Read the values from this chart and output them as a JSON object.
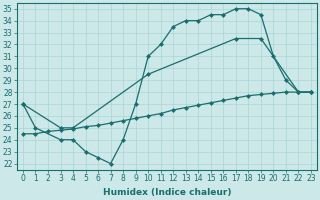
{
  "line1_x": [
    0,
    1,
    3,
    4,
    5,
    6,
    7,
    8,
    9,
    10,
    11,
    12,
    13,
    14,
    15,
    16,
    17,
    18,
    19,
    20,
    21,
    22,
    23
  ],
  "line1_y": [
    27,
    25,
    24,
    24,
    23,
    22.5,
    22,
    24,
    27,
    31,
    32,
    33.5,
    34,
    34,
    34.5,
    34.5,
    35,
    35,
    34.5,
    31,
    29,
    28,
    28
  ],
  "line2_x": [
    0,
    3,
    4,
    10,
    17,
    19,
    22,
    23
  ],
  "line2_y": [
    27,
    25,
    25,
    29.5,
    32.5,
    32.5,
    28,
    28
  ],
  "line3_x": [
    0,
    1,
    2,
    3,
    4,
    5,
    6,
    7,
    8,
    9,
    10,
    11,
    12,
    13,
    14,
    15,
    16,
    17,
    18,
    19,
    20,
    21,
    22,
    23
  ],
  "line3_y": [
    24.5,
    24.5,
    24.7,
    24.8,
    24.9,
    25.1,
    25.2,
    25.4,
    25.6,
    25.8,
    26.0,
    26.2,
    26.5,
    26.7,
    26.9,
    27.1,
    27.3,
    27.5,
    27.7,
    27.8,
    27.9,
    28.0,
    28.0,
    28.0
  ],
  "bg_color": "#cce8e8",
  "line_color": "#1a6e6e",
  "grid_color": "#aad4d4",
  "ylabel_values": [
    22,
    23,
    24,
    25,
    26,
    27,
    28,
    29,
    30,
    31,
    32,
    33,
    34,
    35
  ],
  "xlabel": "Humidex (Indice chaleur)",
  "ylim": [
    21.5,
    35.5
  ],
  "xlim": [
    -0.5,
    23.5
  ],
  "tick_fontsize": 5.5,
  "xlabel_fontsize": 6.5
}
